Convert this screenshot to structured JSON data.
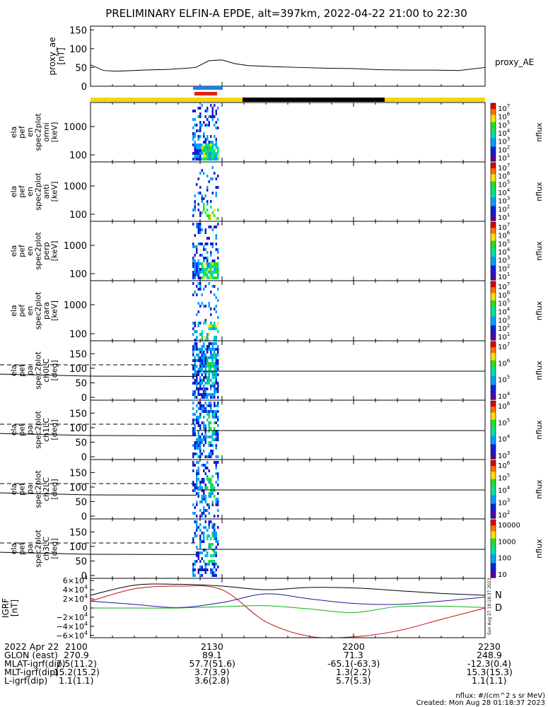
{
  "title": "PRELIMINARY ELFIN-A EPDE, alt=397km, 2022-04-22 21:00 to 22:30",
  "ae_panel": {
    "ylabel": [
      "proxy_ae",
      "[nT]"
    ],
    "legend": "proxy_AE",
    "yticks": [
      "150",
      "100",
      "50",
      "0"
    ]
  },
  "spec_panels": [
    {
      "ylabel": [
        "ela",
        "pef",
        "en",
        "spec2plot",
        "omni",
        "[keV]"
      ],
      "yticks": [
        "1000",
        "100"
      ]
    },
    {
      "ylabel": [
        "ela",
        "pef",
        "en",
        "spec2plot",
        "anti",
        "[keV]"
      ],
      "yticks": [
        "1000",
        "100"
      ]
    },
    {
      "ylabel": [
        "ela",
        "pef",
        "en",
        "spec2plot",
        "perp",
        "[keV]"
      ],
      "yticks": [
        "1000",
        "100"
      ]
    },
    {
      "ylabel": [
        "ela",
        "pef",
        "en",
        "spec2plot",
        "para",
        "[keV]"
      ],
      "yticks": [
        "1000",
        "100"
      ]
    },
    {
      "ylabel": [
        "ela",
        "pef",
        "pa",
        "spec2plot",
        "ch0LC",
        "[deg]"
      ],
      "yticks": [
        "150",
        "100",
        "50",
        "0"
      ]
    },
    {
      "ylabel": [
        "ela",
        "pef",
        "pa",
        "spec2plot",
        "ch1LC",
        "[deg]"
      ],
      "yticks": [
        "150",
        "100",
        "50",
        "0"
      ]
    },
    {
      "ylabel": [
        "ela",
        "pef",
        "pa",
        "spec2plot",
        "ch2LC",
        "[deg]"
      ],
      "yticks": [
        "150",
        "100",
        "50",
        "0"
      ]
    },
    {
      "ylabel": [
        "ela",
        "pef",
        "pa",
        "spec2plot",
        "ch3LC",
        "[deg]"
      ],
      "yticks": [
        "150",
        "100",
        "50",
        "0"
      ]
    }
  ],
  "colorbars": [
    {
      "label": "nflux",
      "ticks": [
        "10<sup>7</sup>",
        "10<sup>6</sup>",
        "10<sup>5</sup>",
        "10<sup>4</sup>",
        "10<sup>3</sup>",
        "10<sup>2</sup>",
        "10<sup>1</sup>"
      ]
    },
    {
      "label": "nflux",
      "ticks": [
        "10<sup>7</sup>",
        "10<sup>6</sup>",
        "10<sup>5</sup>",
        "10<sup>4</sup>",
        "10<sup>3</sup>",
        "10<sup>2</sup>",
        "10<sup>1</sup>"
      ]
    },
    {
      "label": "nflux",
      "ticks": [
        "10<sup>7</sup>",
        "10<sup>6</sup>",
        "10<sup>5</sup>",
        "10<sup>4</sup>",
        "10<sup>3</sup>",
        "10<sup>2</sup>",
        "10<sup>1</sup>"
      ]
    },
    {
      "label": "nflux",
      "ticks": [
        "10<sup>7</sup>",
        "10<sup>6</sup>",
        "10<sup>5</sup>",
        "10<sup>4</sup>",
        "10<sup>3</sup>",
        "10<sup>2</sup>",
        "10<sup>1</sup>"
      ]
    },
    {
      "label": "nflux",
      "ticks": [
        "10<sup>7</sup>",
        "10<sup>6</sup>",
        "10<sup>5</sup>",
        "10<sup>4</sup>"
      ]
    },
    {
      "label": "nflux",
      "ticks": [
        "10<sup>6</sup>",
        "10<sup>5</sup>",
        "10<sup>4</sup>",
        "10<sup>3</sup>"
      ]
    },
    {
      "label": "nflux",
      "ticks": [
        "10<sup>6</sup>",
        "10<sup>5</sup>",
        "10<sup>4</sup>",
        "10<sup>3</sup>",
        "10<sup>2</sup>"
      ]
    },
    {
      "label": "nflux",
      "ticks": [
        "10000",
        "1000",
        "100",
        "10"
      ]
    }
  ],
  "igrf_panel": {
    "ylabel": [
      "IGRF",
      "[nT]"
    ],
    "yticks": [
      "6×10<sup>4</sup>",
      "4×10<sup>4</sup>",
      "2×10<sup>4</sup>",
      "0",
      "−2×10<sup>4</sup>",
      "−4×10<sup>4</sup>",
      "−6×10<sup>4</sup>"
    ],
    "legend_n": "N",
    "legend_d": "D",
    "side_stamp": "Sun Aug 27 18:18:37 2023"
  },
  "colors": {
    "sunlit_bar": "#f5d800",
    "shadow_bar": "#000000",
    "science_zone_blue": "#2080e0",
    "science_zone_red": "#e02010",
    "igrf_n": "#1a1aa0",
    "igrf_e": "#10b010",
    "igrf_d": "#c01010",
    "igrf_total": "#000000"
  },
  "chart_data": [
    {
      "type": "line",
      "name": "proxy_ae",
      "x_minutes": [
        0,
        3,
        6,
        12,
        18,
        24,
        27,
        30,
        33,
        36,
        42,
        48,
        54,
        60,
        66,
        72,
        78,
        84,
        90
      ],
      "y": [
        57,
        42,
        40,
        43,
        45,
        50,
        68,
        70,
        60,
        55,
        52,
        50,
        48,
        47,
        44,
        43,
        43,
        42,
        50
      ],
      "ylim": [
        0,
        160
      ],
      "xticks": [
        "2100",
        "2130",
        "2200",
        "2230"
      ]
    },
    {
      "type": "line",
      "name": "IGRF",
      "x_minutes": [
        0,
        10,
        20,
        30,
        40,
        50,
        60,
        70,
        80,
        90
      ],
      "series": [
        {
          "name": "N",
          "values": [
            15000,
            8000,
            1000,
            12000,
            31000,
            20000,
            10000,
            8000,
            15000,
            24000
          ]
        },
        {
          "name": "E",
          "values": [
            0,
            0,
            0,
            3000,
            5000,
            -2000,
            -10000,
            3000,
            4000,
            1000
          ]
        },
        {
          "name": "D",
          "values": [
            15000,
            42000,
            48000,
            40000,
            -30000,
            -62000,
            -63000,
            -50000,
            -25000,
            0
          ]
        },
        {
          "name": "total",
          "values": [
            28000,
            50000,
            52000,
            48000,
            40000,
            45000,
            44000,
            38000,
            32000,
            28000
          ]
        }
      ],
      "ylim": [
        -65000,
        65000
      ]
    }
  ],
  "footer": {
    "rows": [
      {
        "label": "2022 Apr 22",
        "values": [
          "2100",
          "2130",
          "2200",
          "2230"
        ]
      },
      {
        "label": "GLON (east)",
        "values": [
          "270.9",
          "89.1",
          "71.3",
          "248.9"
        ]
      },
      {
        "label": "MLAT-igrf(dip)",
        "values": [
          "7.5(11.2)",
          "57.7(51.6)",
          "-65.1(-63.3)",
          "-12.3(0.4)"
        ]
      },
      {
        "label": "MLT-igrf(dip)",
        "values": [
          "15.2(15.2)",
          "3.7(3.9)",
          "1.3(2.2)",
          "15.3(15.3)"
        ]
      },
      {
        "label": "L-igrf(dip)",
        "values": [
          "1.1(1.1)",
          "3.6(2.8)",
          "5.7(5.3)",
          "1.1(1.1)"
        ]
      }
    ],
    "units": "nflux: #/(cm^2 s sr MeV)",
    "created": "Created: Mon Aug 28 01:18:37 2023"
  }
}
